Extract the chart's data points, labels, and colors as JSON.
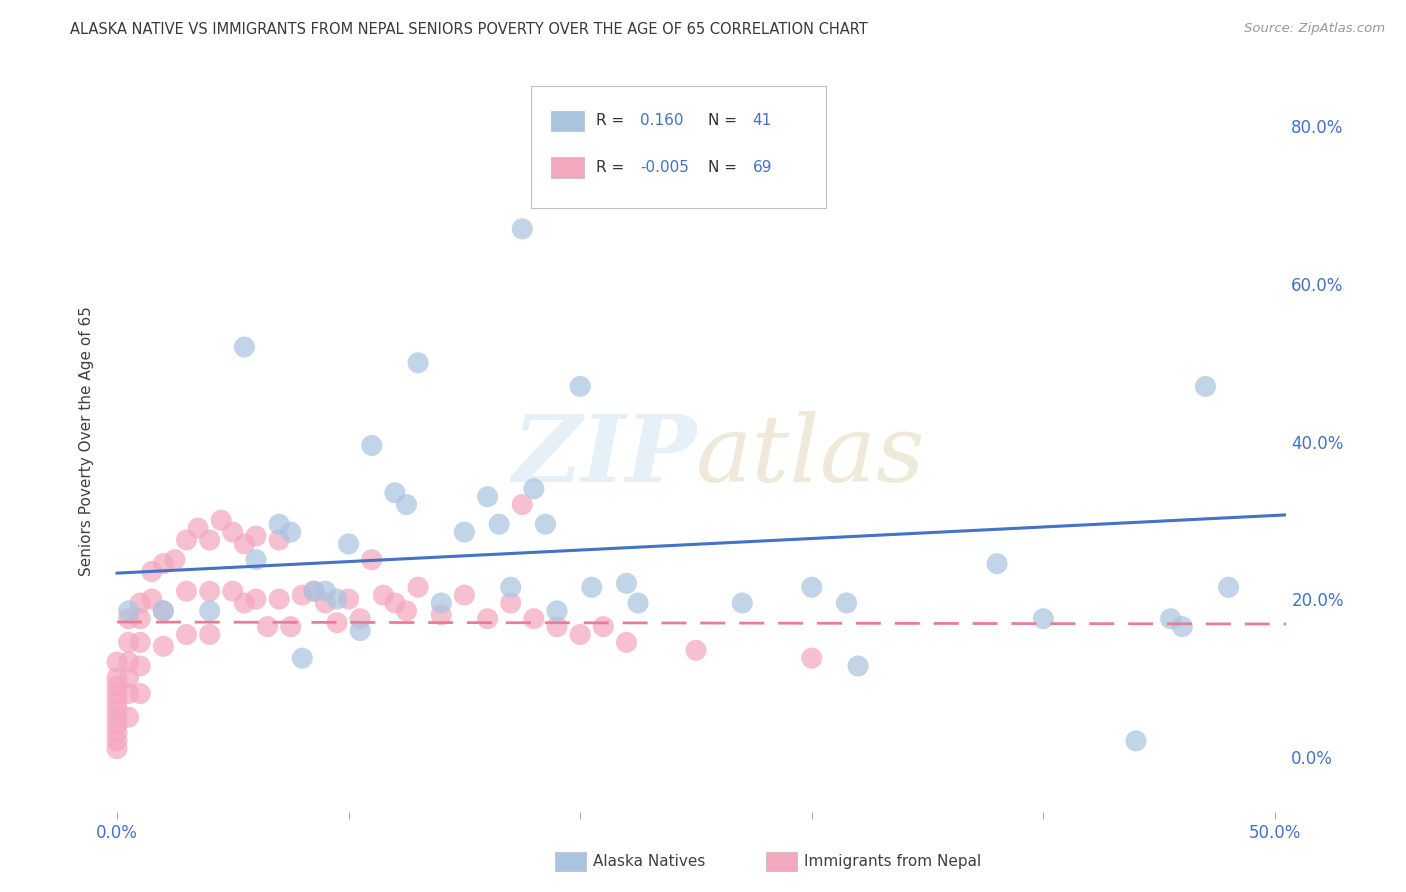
{
  "title": "ALASKA NATIVE VS IMMIGRANTS FROM NEPAL SENIORS POVERTY OVER THE AGE OF 65 CORRELATION CHART",
  "source": "Source: ZipAtlas.com",
  "ylabel": "Seniors Poverty Over the Age of 65",
  "xlim": [
    -0.005,
    0.505
  ],
  "ylim": [
    -0.07,
    0.87
  ],
  "xticks": [
    0.0,
    0.1,
    0.2,
    0.3,
    0.4,
    0.5
  ],
  "xtick_labels": [
    "0.0%",
    "",
    "",
    "",
    "",
    "50.0%"
  ],
  "yticks": [
    0.0,
    0.2,
    0.4,
    0.6,
    0.8
  ],
  "ytick_labels": [
    "0.0%",
    "20.0%",
    "40.0%",
    "60.0%",
    "80.0%"
  ],
  "alaska_color": "#aac4e0",
  "nepal_color": "#f4a8be",
  "alaska_R": 0.16,
  "alaska_N": 41,
  "nepal_R": -0.005,
  "nepal_N": 69,
  "alaska_line_color": "#4472c4",
  "nepal_line_color": "#e87d96",
  "axis_label_color": "#4472c4",
  "title_color": "#3a3a3a",
  "watermark_color": "#c8dff0",
  "alaska_scatter_x": [
    0.005,
    0.02,
    0.04,
    0.055,
    0.06,
    0.07,
    0.075,
    0.08,
    0.085,
    0.09,
    0.095,
    0.1,
    0.105,
    0.11,
    0.12,
    0.125,
    0.13,
    0.14,
    0.15,
    0.16,
    0.165,
    0.17,
    0.175,
    0.18,
    0.185,
    0.19,
    0.2,
    0.205,
    0.22,
    0.225,
    0.27,
    0.3,
    0.315,
    0.32,
    0.38,
    0.4,
    0.44,
    0.455,
    0.46,
    0.47,
    0.48
  ],
  "alaska_scatter_y": [
    0.185,
    0.185,
    0.185,
    0.52,
    0.25,
    0.295,
    0.285,
    0.125,
    0.21,
    0.21,
    0.2,
    0.27,
    0.16,
    0.395,
    0.335,
    0.32,
    0.5,
    0.195,
    0.285,
    0.33,
    0.295,
    0.215,
    0.67,
    0.34,
    0.295,
    0.185,
    0.47,
    0.215,
    0.22,
    0.195,
    0.195,
    0.215,
    0.195,
    0.115,
    0.245,
    0.175,
    0.02,
    0.175,
    0.165,
    0.47,
    0.215
  ],
  "nepal_scatter_x": [
    0.0,
    0.0,
    0.0,
    0.0,
    0.0,
    0.0,
    0.0,
    0.0,
    0.0,
    0.0,
    0.0,
    0.005,
    0.005,
    0.005,
    0.005,
    0.005,
    0.005,
    0.01,
    0.01,
    0.01,
    0.01,
    0.01,
    0.015,
    0.015,
    0.02,
    0.02,
    0.02,
    0.025,
    0.03,
    0.03,
    0.03,
    0.035,
    0.04,
    0.04,
    0.04,
    0.045,
    0.05,
    0.05,
    0.055,
    0.055,
    0.06,
    0.06,
    0.065,
    0.07,
    0.07,
    0.075,
    0.08,
    0.085,
    0.09,
    0.095,
    0.1,
    0.105,
    0.11,
    0.115,
    0.12,
    0.125,
    0.13,
    0.14,
    0.15,
    0.16,
    0.17,
    0.175,
    0.18,
    0.19,
    0.2,
    0.21,
    0.22,
    0.25,
    0.3
  ],
  "nepal_scatter_y": [
    0.12,
    0.1,
    0.09,
    0.08,
    0.07,
    0.06,
    0.05,
    0.04,
    0.03,
    0.02,
    0.01,
    0.175,
    0.145,
    0.12,
    0.1,
    0.08,
    0.05,
    0.195,
    0.175,
    0.145,
    0.115,
    0.08,
    0.235,
    0.2,
    0.245,
    0.185,
    0.14,
    0.25,
    0.275,
    0.21,
    0.155,
    0.29,
    0.275,
    0.21,
    0.155,
    0.3,
    0.285,
    0.21,
    0.27,
    0.195,
    0.28,
    0.2,
    0.165,
    0.275,
    0.2,
    0.165,
    0.205,
    0.21,
    0.195,
    0.17,
    0.2,
    0.175,
    0.25,
    0.205,
    0.195,
    0.185,
    0.215,
    0.18,
    0.205,
    0.175,
    0.195,
    0.32,
    0.175,
    0.165,
    0.155,
    0.165,
    0.145,
    0.135,
    0.125
  ]
}
